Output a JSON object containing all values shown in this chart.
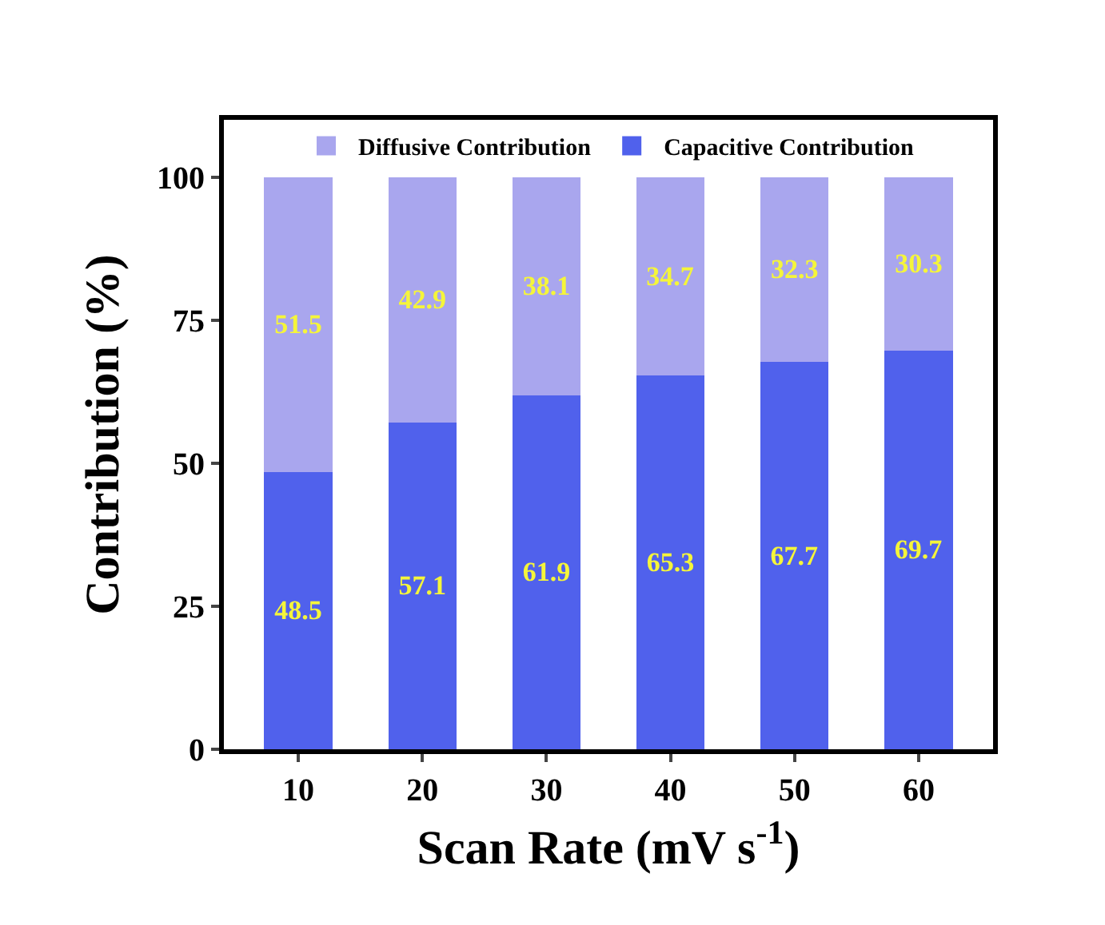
{
  "chart_data": {
    "type": "bar",
    "stacked": true,
    "xlabel": "Scan Rate (mV s$^{-1}$)",
    "ylabel": "Contribution (%)",
    "categories": [
      "10",
      "20",
      "30",
      "40",
      "50",
      "60"
    ],
    "series": [
      {
        "name": "Capacitive Contribution",
        "color": "#5061ec",
        "values": [
          48.5,
          57.1,
          61.9,
          65.3,
          67.7,
          69.7
        ]
      },
      {
        "name": "Diffusive Contribution",
        "color": "#a9a6ee",
        "values": [
          51.5,
          42.9,
          38.1,
          34.7,
          32.3,
          30.3
        ]
      }
    ],
    "ylim": [
      0,
      110
    ],
    "yticks": [
      0,
      25,
      50,
      75,
      100
    ],
    "data_labels": true,
    "legend": "top"
  }
}
